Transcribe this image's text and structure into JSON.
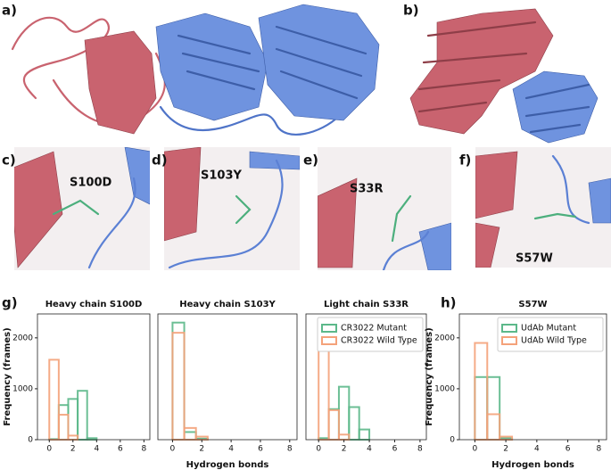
{
  "panel_labels": [
    "a)",
    "b)",
    "c)",
    "d)",
    "e)",
    "f)",
    "g)",
    "h)"
  ],
  "mutations": [
    "S100D",
    "S103Y",
    "S33R",
    "S57W"
  ],
  "chart_data": [
    {
      "type": "histogram",
      "title": "Heavy chain S100D",
      "ylabel": "Frequency (frames)",
      "bins": [
        0,
        0.8,
        1.6,
        2.4,
        3.2,
        4.0,
        4.8,
        5.6,
        6.4,
        7.2,
        8.0
      ],
      "series": [
        {
          "color": "#5cb88a",
          "values": [
            10,
            680,
            800,
            960,
            30,
            0,
            0,
            0,
            0,
            0
          ]
        },
        {
          "color": "#f4a27a",
          "values": [
            1570,
            490,
            80,
            0,
            0,
            0,
            0,
            0,
            0,
            0
          ]
        }
      ],
      "xlim": [
        -1,
        8.5
      ],
      "ylim": [
        0,
        2470
      ],
      "xticks": [
        0,
        2,
        4,
        6,
        8
      ],
      "yticks": [
        0,
        1000,
        2000
      ]
    },
    {
      "type": "histogram",
      "title": "Heavy chain S103Y",
      "xlabel": "Hydrogen bonds",
      "bins": [
        0,
        0.8,
        1.6,
        2.4,
        3.2,
        4.0,
        4.8,
        5.6,
        6.4,
        7.2,
        8.0
      ],
      "series": [
        {
          "color": "#5cb88a",
          "values": [
            2300,
            150,
            20,
            0,
            0,
            0,
            0,
            0,
            0,
            0
          ]
        },
        {
          "color": "#f4a27a",
          "values": [
            2100,
            230,
            60,
            0,
            0,
            0,
            0,
            0,
            0,
            0
          ]
        }
      ],
      "xlim": [
        -1,
        8.5
      ],
      "ylim": [
        0,
        2470
      ],
      "xticks": [
        0,
        2,
        4,
        6,
        8
      ]
    },
    {
      "type": "histogram",
      "title": "Light chain S33R",
      "legend": "upper right",
      "bins": [
        0,
        0.8,
        1.6,
        2.4,
        3.2,
        4.0,
        4.8,
        5.6,
        6.4,
        7.2,
        8.0
      ],
      "series": [
        {
          "name": "CR3022 Mutant",
          "color": "#5cb88a",
          "values": [
            30,
            600,
            1040,
            640,
            200,
            0,
            0,
            0,
            0,
            0
          ]
        },
        {
          "name": "CR3022 Wild Type",
          "color": "#f4a27a",
          "values": [
            1760,
            580,
            100,
            0,
            0,
            0,
            0,
            0,
            0,
            0
          ]
        }
      ],
      "xlim": [
        -1,
        8.5
      ],
      "ylim": [
        0,
        2470
      ],
      "xticks": [
        0,
        2,
        4,
        6,
        8
      ]
    },
    {
      "type": "histogram",
      "title": "S57W",
      "legend": "upper right",
      "ylabel": "Frequency (frames)",
      "xlabel": "Hydrogen bonds",
      "bins": [
        0,
        0.8,
        1.6,
        2.4,
        3.2,
        4.0,
        4.8,
        5.6,
        6.4,
        7.2,
        8.0
      ],
      "series": [
        {
          "name": "UdAb Mutant",
          "color": "#5cb88a",
          "values": [
            1230,
            1230,
            30,
            0,
            0,
            0,
            0,
            0,
            0,
            0
          ]
        },
        {
          "name": "UdAb Wild Type",
          "color": "#f4a27a",
          "values": [
            1900,
            500,
            60,
            0,
            0,
            0,
            0,
            0,
            0,
            0
          ]
        }
      ],
      "xlim": [
        -1,
        8.5
      ],
      "ylim": [
        0,
        2470
      ],
      "xticks": [
        0,
        2,
        4,
        6,
        8
      ],
      "yticks": [
        0,
        1000,
        2000
      ]
    }
  ]
}
